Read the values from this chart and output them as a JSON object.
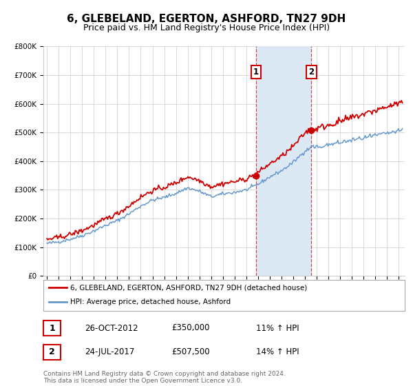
{
  "title": "6, GLEBELAND, EGERTON, ASHFORD, TN27 9DH",
  "subtitle": "Price paid vs. HM Land Registry's House Price Index (HPI)",
  "ylim": [
    0,
    800000
  ],
  "yticks": [
    0,
    100000,
    200000,
    300000,
    400000,
    500000,
    600000,
    700000,
    800000
  ],
  "ytick_labels": [
    "£0",
    "£100K",
    "£200K",
    "£300K",
    "£400K",
    "£500K",
    "£600K",
    "£700K",
    "£800K"
  ],
  "xlim_start": 1994.7,
  "xlim_end": 2025.5,
  "sale1_year": 2012.82,
  "sale1_price": 350000,
  "sale1_date": "26-OCT-2012",
  "sale1_price_str": "£350,000",
  "sale1_hpi": "11% ↑ HPI",
  "sale2_year": 2017.55,
  "sale2_price": 507500,
  "sale2_date": "24-JUL-2017",
  "sale2_price_str": "£507,500",
  "sale2_hpi": "14% ↑ HPI",
  "red_line_color": "#cc0000",
  "blue_line_color": "#6699cc",
  "shade_color": "#dce9f5",
  "grid_color": "#cccccc",
  "legend_line1": "6, GLEBELAND, EGERTON, ASHFORD, TN27 9DH (detached house)",
  "legend_line2": "HPI: Average price, detached house, Ashford",
  "footer": "Contains HM Land Registry data © Crown copyright and database right 2024.\nThis data is licensed under the Open Government Licence v3.0.",
  "title_fontsize": 11,
  "subtitle_fontsize": 9,
  "tick_fontsize": 7.5
}
